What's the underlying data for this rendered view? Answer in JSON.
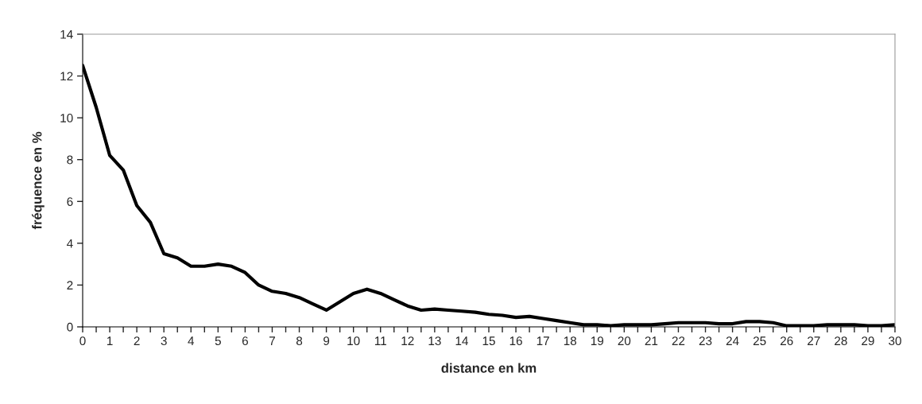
{
  "chart_data": {
    "type": "line",
    "xlabel": "distance en km",
    "ylabel": "fréquence en %",
    "x": [
      0,
      0.5,
      1,
      1.5,
      2,
      2.5,
      3,
      3.5,
      4,
      4.5,
      5,
      5.5,
      6,
      6.5,
      7,
      7.5,
      8,
      8.5,
      9,
      9.5,
      10,
      10.5,
      11,
      11.5,
      12,
      12.5,
      13,
      13.5,
      14,
      14.5,
      15,
      15.5,
      16,
      16.5,
      17,
      17.5,
      18,
      18.5,
      19,
      19.5,
      20,
      20.5,
      21,
      21.5,
      22,
      22.5,
      23,
      23.5,
      24,
      24.5,
      25,
      25.5,
      26,
      26.5,
      27,
      27.5,
      28,
      28.5,
      29,
      29.5,
      30
    ],
    "series": [
      {
        "color": "#000000",
        "values": [
          12.5,
          10.5,
          8.2,
          7.5,
          5.8,
          5.0,
          3.5,
          3.3,
          2.9,
          2.9,
          3.0,
          2.9,
          2.6,
          2.0,
          1.7,
          1.6,
          1.4,
          1.1,
          0.8,
          1.2,
          1.6,
          1.8,
          1.6,
          1.3,
          1.0,
          0.8,
          0.85,
          0.8,
          0.75,
          0.7,
          0.6,
          0.55,
          0.45,
          0.5,
          0.4,
          0.3,
          0.2,
          0.1,
          0.1,
          0.05,
          0.1,
          0.1,
          0.1,
          0.15,
          0.2,
          0.2,
          0.2,
          0.15,
          0.15,
          0.25,
          0.25,
          0.2,
          0.05,
          0.05,
          0.05,
          0.1,
          0.1,
          0.1,
          0.05,
          0.05,
          0.1
        ]
      }
    ],
    "xlim": [
      0,
      30
    ],
    "xticks": [
      0,
      {
        "value": 0.5,
        "label": null
      },
      1,
      {
        "value": 1.5,
        "label": null
      },
      2,
      {
        "value": 2.5,
        "label": null
      },
      3,
      {
        "value": 3.5,
        "label": null
      },
      4,
      {
        "value": 4.5,
        "label": null
      },
      5,
      {
        "value": 5.5,
        "label": null
      },
      6,
      {
        "value": 6.5,
        "label": null
      },
      7,
      {
        "value": 7.5,
        "label": null
      },
      8,
      {
        "value": 8.5,
        "label": null
      },
      9,
      {
        "value": 9.5,
        "label": null
      },
      10,
      {
        "value": 10.5,
        "label": null
      },
      11,
      {
        "value": 11.5,
        "label": null
      },
      12,
      {
        "value": 12.5,
        "label": null
      },
      13,
      {
        "value": 13.5,
        "label": null
      },
      14,
      {
        "value": 14.5,
        "label": null
      },
      15,
      {
        "value": 15.5,
        "label": null
      },
      16,
      {
        "value": 16.5,
        "label": null
      },
      17,
      {
        "value": 17.5,
        "label": null
      },
      18,
      {
        "value": 18.5,
        "label": null
      },
      19,
      {
        "value": 19.5,
        "label": null
      },
      20,
      {
        "value": 20.5,
        "label": null
      },
      21,
      {
        "value": 21.5,
        "label": null
      },
      22,
      {
        "value": 22.5,
        "label": null
      },
      23,
      {
        "value": 23.5,
        "label": null
      },
      24,
      {
        "value": 24.5,
        "label": null
      },
      25,
      {
        "value": 25.5,
        "label": null
      },
      26,
      {
        "value": 26.5,
        "label": null
      },
      27,
      {
        "value": 27.5,
        "label": null
      },
      28,
      {
        "value": 28.5,
        "label": null
      },
      29,
      {
        "value": 29.5,
        "label": null
      },
      30
    ],
    "ylim": [
      0,
      14
    ],
    "yticks": [
      0,
      2,
      4,
      6,
      8,
      10,
      12,
      14
    ],
    "grid": false,
    "marker": "none",
    "line_style": "solid"
  }
}
